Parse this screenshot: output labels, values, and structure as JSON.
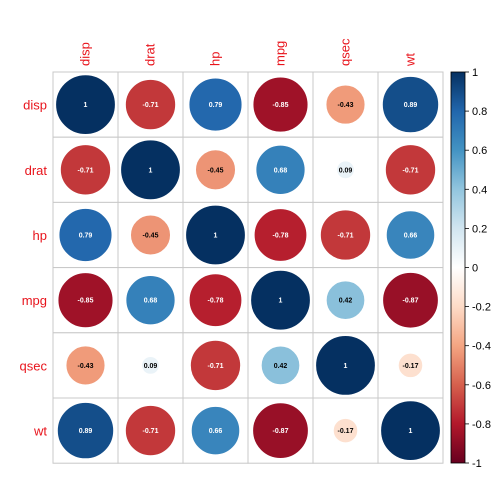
{
  "chart_data": {
    "type": "heatmap",
    "title": "",
    "variables": [
      "disp",
      "drat",
      "hp",
      "mpg",
      "qsec",
      "wt"
    ],
    "matrix": [
      [
        1,
        -0.71,
        0.79,
        -0.85,
        -0.43,
        0.89
      ],
      [
        -0.71,
        1,
        -0.45,
        0.68,
        0.09,
        -0.71
      ],
      [
        0.79,
        -0.45,
        1,
        -0.78,
        -0.71,
        0.66
      ],
      [
        -0.85,
        0.68,
        -0.78,
        1,
        0.42,
        -0.87
      ],
      [
        -0.43,
        0.09,
        -0.71,
        0.42,
        1,
        -0.17
      ],
      [
        0.89,
        -0.71,
        0.66,
        -0.87,
        -0.17,
        1
      ]
    ],
    "value_labels": [
      [
        "1",
        "-0.71",
        "0.79",
        "-0.85",
        "-0.43",
        "0.89"
      ],
      [
        "-0.71",
        "1",
        "-0.45",
        "0.68",
        "0.09",
        "-0.71"
      ],
      [
        "0.79",
        "-0.45",
        "1",
        "-0.78",
        "-0.71",
        "0.66"
      ],
      [
        "-0.85",
        "0.68",
        "-0.78",
        "1",
        "0.42",
        "-0.87"
      ],
      [
        "-0.43",
        "0.09",
        "-0.71",
        "0.42",
        "1",
        "-0.17"
      ],
      [
        "0.89",
        "-0.71",
        "0.66",
        "-0.87",
        "-0.17",
        "1"
      ]
    ],
    "mark": "circle",
    "legend": {
      "placement": "right",
      "range": [
        -1,
        1
      ],
      "ticks": [
        "1",
        "0.8",
        "0.6",
        "0.4",
        "0.2",
        "0",
        "-0.2",
        "-0.4",
        "-0.6",
        "-0.8",
        "-1"
      ],
      "colors": [
        "#67001f",
        "#b2182b",
        "#d6604d",
        "#f4a582",
        "#fddbc7",
        "#ffffff",
        "#d1e5f0",
        "#92c5de",
        "#4393c3",
        "#2166ac",
        "#053061"
      ]
    },
    "label_color": "#e8141c",
    "grid": true
  }
}
